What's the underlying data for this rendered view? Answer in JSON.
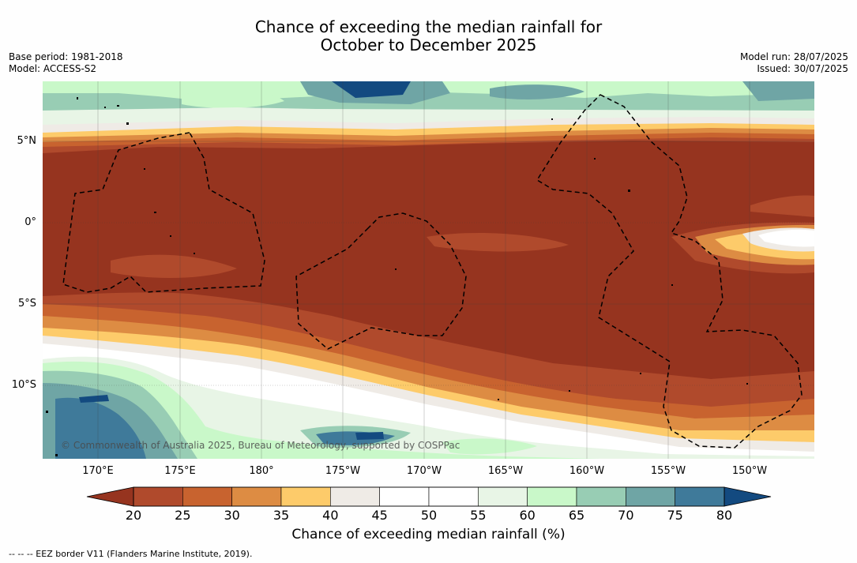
{
  "title_line1": "Chance of exceeding the median rainfall for",
  "title_line2": "October to December 2025",
  "left_meta": {
    "line1": "Base period: 1981-2018",
    "line2": "Model: ACCESS-S2"
  },
  "right_meta": {
    "line1": "Model run: 28/07/2025",
    "line2": "Issued: 30/07/2025"
  },
  "credit": "© Commonwealth of Australia 2025, Bureau of Meteorology, supported by COSPPac",
  "footnote": "--  --  -- EEZ border V11 (Flanders Marine Institute, 2019).",
  "lat_labels": [
    "5°N",
    "0°",
    "5°S",
    "10°S"
  ],
  "lon_labels": [
    "170°E",
    "175°E",
    "180°",
    "175°W",
    "170°W",
    "165°W",
    "160°W",
    "155°W",
    "150°W"
  ],
  "colorbar": {
    "title": "Chance of exceeding median rainfall (%)",
    "ticks": [
      "20",
      "25",
      "30",
      "35",
      "40",
      "45",
      "50",
      "55",
      "60",
      "65",
      "70",
      "75",
      "80"
    ],
    "colors": [
      "#96341f",
      "#b04a2c",
      "#c8632f",
      "#dd8c43",
      "#fdcb6a",
      "#efebe6",
      "#ffffff",
      "#ffffff",
      "#e8f5e6",
      "#c9f8c9",
      "#98cdb4",
      "#6fa5a5",
      "#3f7a9a",
      "#134a80"
    ]
  },
  "colors": {
    "dry_core": "#96341f",
    "wet_core": "#134a80"
  }
}
